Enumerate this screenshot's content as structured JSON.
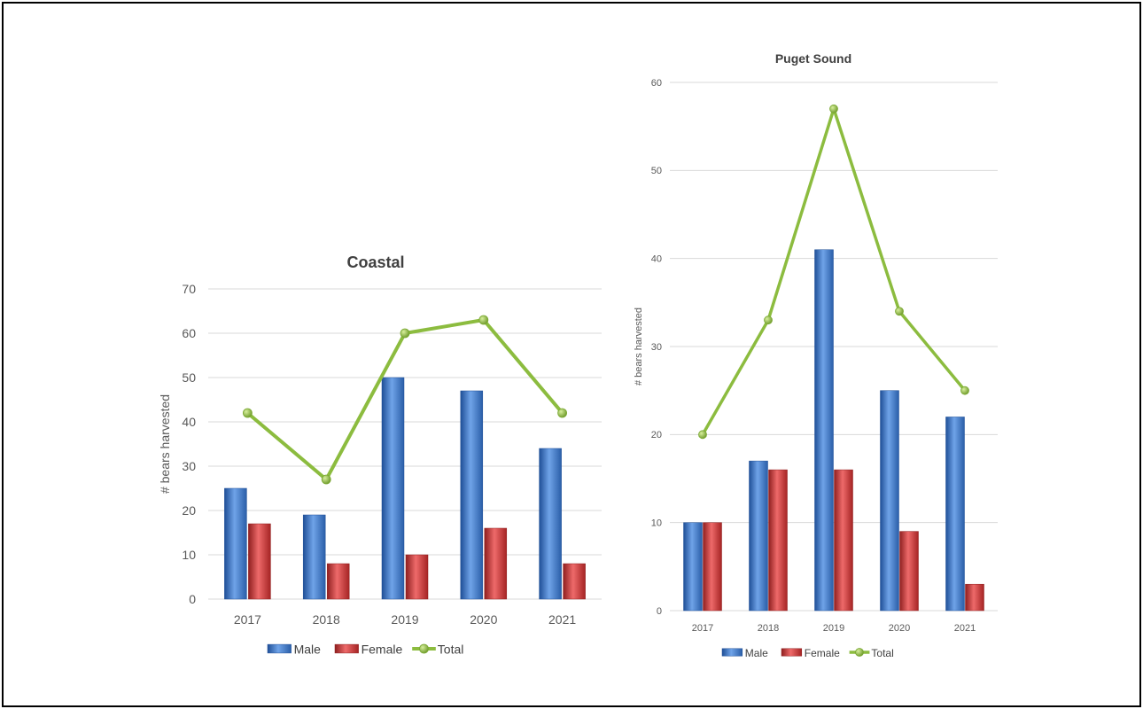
{
  "colors": {
    "male": "#3a76c9",
    "male_light": "#6fa3e8",
    "male_dark": "#1f4f97",
    "female": "#c83232",
    "female_light": "#ee6a6a",
    "female_dark": "#8f1f1f",
    "total": "#8cbc3f",
    "total_marker": "#7aa832",
    "grid": "#d9d9d9"
  },
  "chart_data": [
    {
      "type": "bar",
      "title": "Coastal",
      "xlabel": "",
      "ylabel": "# bears harvested",
      "categories": [
        "2017",
        "2018",
        "2019",
        "2020",
        "2021"
      ],
      "ylim": [
        0,
        70
      ],
      "yticks": [
        0,
        10,
        20,
        30,
        40,
        50,
        60,
        70
      ],
      "grid": true,
      "legend": "bottom",
      "series": [
        {
          "name": "Male",
          "kind": "bar",
          "values": [
            25,
            19,
            50,
            47,
            34
          ]
        },
        {
          "name": "Female",
          "kind": "bar",
          "values": [
            17,
            8,
            10,
            16,
            8
          ]
        },
        {
          "name": "Total",
          "kind": "line",
          "values": [
            42,
            27,
            60,
            63,
            42
          ]
        }
      ]
    },
    {
      "type": "bar",
      "title": "Puget Sound",
      "xlabel": "",
      "ylabel": "# bears harvested",
      "categories": [
        "2017",
        "2018",
        "2019",
        "2020",
        "2021"
      ],
      "ylim": [
        0,
        60
      ],
      "yticks": [
        0,
        10,
        20,
        30,
        40,
        50,
        60
      ],
      "grid": true,
      "legend": "bottom",
      "series": [
        {
          "name": "Male",
          "kind": "bar",
          "values": [
            10,
            17,
            41,
            25,
            22
          ]
        },
        {
          "name": "Female",
          "kind": "bar",
          "values": [
            10,
            16,
            16,
            9,
            3
          ]
        },
        {
          "name": "Total",
          "kind": "line",
          "values": [
            20,
            33,
            57,
            34,
            25
          ]
        }
      ]
    }
  ]
}
